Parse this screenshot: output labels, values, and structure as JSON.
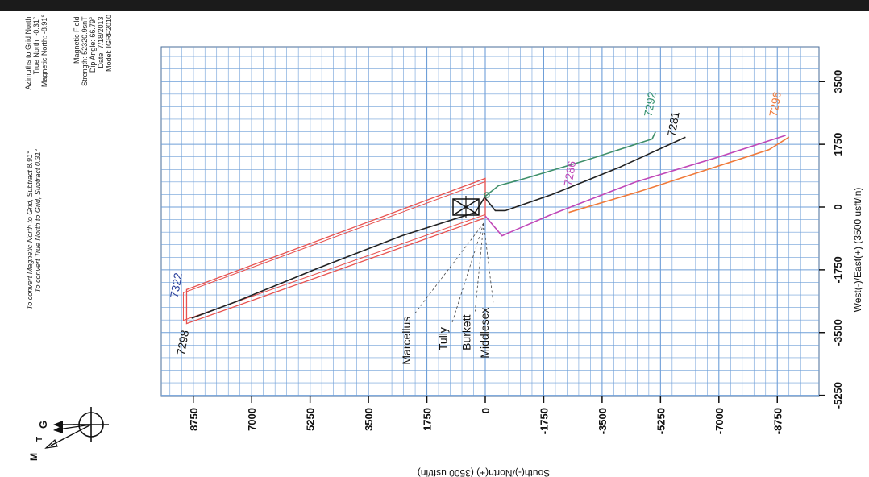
{
  "header": {
    "azimuth_block": [
      "Azimuths to Grid North",
      "True North: -0.31°",
      "Magnetic North: -8.91°"
    ],
    "magnetic_block": [
      "Magnetic Field",
      "Strength: 52320.9snT",
      "Dip Angle: 66.79°",
      "Date: 7/18/2013",
      "Model: IGRF2010"
    ],
    "convert_notes": [
      "To convert Magnetic North to Grid, Subtract 8.91°",
      "To convert True North to Grid, Subtract 0.31°"
    ]
  },
  "north_arrow": {
    "labels": [
      "G",
      "T",
      "M"
    ]
  },
  "chart_data": {
    "type": "line",
    "xlabel": "South(-)/North(+) (3500 usft/in)",
    "ylabel": "West(-)/East(+) (3500 usft/in)",
    "xlim": [
      -9300,
      9700
    ],
    "ylim": [
      -6000,
      4700
    ],
    "x_ticks": [
      8750,
      7000,
      5250,
      3500,
      1750,
      0,
      -1750,
      -3500,
      -5250,
      -7000,
      -8750
    ],
    "y_ticks": [
      3500,
      1750,
      0,
      -1750,
      -3500,
      -5250
    ],
    "grid": true,
    "colors": {
      "grid": "#6f9fd8",
      "lease": "#e8524f",
      "w7298": "#222222",
      "w7281": "#222222",
      "w7292": "#3f8f6a",
      "w7286": "#c048b8",
      "w7296": "#f07a3a",
      "label7322": "#2a3f9a",
      "label7292": "#2f8f6a",
      "label7286": "#c048b8",
      "label7296": "#f07a3a"
    },
    "series": [
      {
        "name": "7298",
        "points": [
          [
            0,
            300
          ],
          [
            300,
            -150
          ],
          [
            2500,
            -800
          ],
          [
            5000,
            -1700
          ],
          [
            7500,
            -2650
          ],
          [
            8800,
            -3100
          ]
        ]
      },
      {
        "name": "7281",
        "points": [
          [
            0,
            250
          ],
          [
            -300,
            -100
          ],
          [
            -600,
            -100
          ],
          [
            -2000,
            350
          ],
          [
            -4000,
            1100
          ],
          [
            -6000,
            1950
          ]
        ]
      },
      {
        "name": "7292",
        "points": [
          [
            0,
            300
          ],
          [
            -400,
            600
          ],
          [
            -1200,
            800
          ],
          [
            -3000,
            1300
          ],
          [
            -5000,
            1900
          ],
          [
            -5100,
            2100
          ]
        ]
      },
      {
        "name": "7286",
        "points": [
          [
            0,
            -250
          ],
          [
            -500,
            -800
          ],
          [
            -2000,
            -200
          ],
          [
            -4500,
            700
          ],
          [
            -7000,
            1400
          ],
          [
            -9000,
            2000
          ]
        ]
      },
      {
        "name": "7296",
        "points": [
          [
            -2500,
            -150
          ],
          [
            -4500,
            400
          ],
          [
            -6500,
            1000
          ],
          [
            -8500,
            1600
          ],
          [
            -9100,
            1950
          ]
        ]
      }
    ],
    "lease_outline": [
      [
        0,
        800
      ],
      [
        8950,
        -2300
      ],
      [
        8950,
        -3250
      ],
      [
        0,
        -300
      ]
    ],
    "well_labels": [
      {
        "text": "7322",
        "x": 9150,
        "y": -2200
      },
      {
        "text": "7298",
        "x": 8950,
        "y": -3800
      },
      {
        "text": "7292",
        "x": -5050,
        "y": 2850
      },
      {
        "text": "7281",
        "x": -5750,
        "y": 2300
      },
      {
        "text": "7286",
        "x": -2650,
        "y": 920
      },
      {
        "text": "7296",
        "x": -8800,
        "y": 2850
      }
    ],
    "formation_labels": [
      {
        "text": "Marcellus",
        "x": 2250,
        "y": -3050
      },
      {
        "text": "Tully",
        "x": 1150,
        "y": -3350
      },
      {
        "text": "Burkett",
        "x": 450,
        "y": -3000
      },
      {
        "text": "Middlesex",
        "x": -100,
        "y": -2800
      }
    ]
  }
}
